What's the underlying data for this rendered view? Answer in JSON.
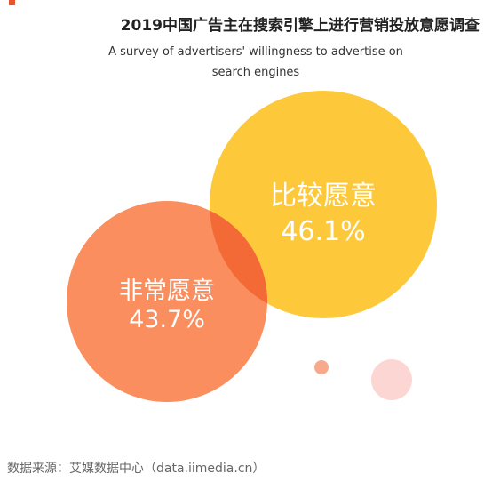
{
  "title": "2019中国广告主在搜索引擎上进行营销投放意愿调查",
  "subtitle": "A survey of advertisers' willingness to advertise on search engines",
  "source": "数据来源：艾媒数据中心（data.iimedia.cn）",
  "colors": {
    "accent": "#e8542f",
    "willing_more": "#fdc83a",
    "very_willing": "#fb8e5e",
    "overlap": "#f36a36",
    "decor_small": "#f8a98c",
    "decor_light": "#fcd6d2"
  },
  "chart_data": {
    "type": "bubble",
    "title": "2019中国广告主在搜索引擎上进行营销投放意愿调查",
    "subtitle": "A survey of advertisers' willingness to advertise on search engines",
    "series": [
      {
        "name": "比较愿意",
        "value": 46.1,
        "label": "46.1%"
      },
      {
        "name": "非常愿意",
        "value": 43.7,
        "label": "43.7%"
      }
    ],
    "unit": "%"
  }
}
